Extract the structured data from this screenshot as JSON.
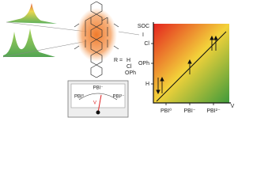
{
  "molecule": {
    "intensity_label": "I",
    "r_label": "R =",
    "substituents": [
      "H",
      "Cl",
      "OPh"
    ]
  },
  "meter": {
    "left_label": "PBI⁰",
    "top_label": "PBI⁻",
    "right_label": "PBI²⁻",
    "unit_label": "V"
  },
  "plot": {
    "y_axis_label": "SOC",
    "y_labels": [
      "Cl",
      "OPh",
      "H"
    ],
    "x_labels": [
      "PBI⁰",
      "PBI⁻",
      "PBI²⁻"
    ],
    "x_axis_label": "V"
  }
}
